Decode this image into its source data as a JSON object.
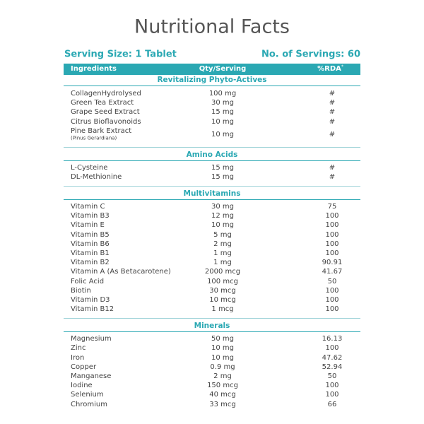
{
  "header": {
    "title": "Nutritional Facts",
    "serving_size": "Serving Size: 1 Tablet",
    "servings": "No. of Servings: 60"
  },
  "table": {
    "columns": [
      "Ingredients",
      "Qty/Serving",
      "%RDA"
    ],
    "rda_mark": "*",
    "sections": [
      {
        "title": "Revitalizing Phyto-Actives",
        "rows": [
          [
            "CollagenHydrolysed",
            "100 mg",
            "#"
          ],
          [
            "Green Tea Extract",
            "30 mg",
            "#"
          ],
          [
            "Grape Seed Extract",
            "15 mg",
            "#"
          ],
          [
            "Citrus Bioflavonoids",
            "10 mg",
            "#"
          ],
          [
            "Pine Bark Extract",
            "10 mg",
            "#",
            "(Pinus Gerardiana)"
          ]
        ]
      },
      {
        "title": "Amino Acids",
        "rows": [
          [
            "L-Cysteine",
            "15 mg",
            "#"
          ],
          [
            "DL-Methionine",
            "15 mg",
            "#"
          ]
        ]
      },
      {
        "title": "Multivitamins",
        "rows": [
          [
            "Vitamin C",
            "30 mg",
            "75"
          ],
          [
            "Vitamin B3",
            "12 mg",
            "100"
          ],
          [
            "Vitamin E",
            "10 mg",
            "100"
          ],
          [
            "Vitamin B5",
            "5 mg",
            "100"
          ],
          [
            "Vitamin B6",
            "2 mg",
            "100"
          ],
          [
            "Vitamin B1",
            "1 mg",
            "100"
          ],
          [
            "Vitamin B2",
            "1 mg",
            "90.91"
          ],
          [
            "Vitamin A (As Betacarotene)",
            "2000 mcg",
            "41.67"
          ],
          [
            "Folic Acid",
            "100 mcg",
            "50"
          ],
          [
            "Biotin",
            "30 mcg",
            "100"
          ],
          [
            "Vitamin D3",
            "10 mcg",
            "100"
          ],
          [
            "Vitamin B12",
            "1 mcg",
            "100"
          ]
        ]
      },
      {
        "title": "Minerals",
        "rows": [
          [
            "Magnesium",
            "50 mg",
            "16.13"
          ],
          [
            "Zinc",
            "10 mg",
            "100"
          ],
          [
            "Iron",
            "10 mg",
            "47.62"
          ],
          [
            "Copper",
            "0.9 mg",
            "52.94"
          ],
          [
            "Manganese",
            "2 mg",
            "50"
          ],
          [
            "Iodine",
            "150 mcg",
            "100"
          ],
          [
            "Selenium",
            "40 mcg",
            "100"
          ],
          [
            "Chromium",
            "33 mcg",
            "66"
          ]
        ]
      }
    ]
  }
}
